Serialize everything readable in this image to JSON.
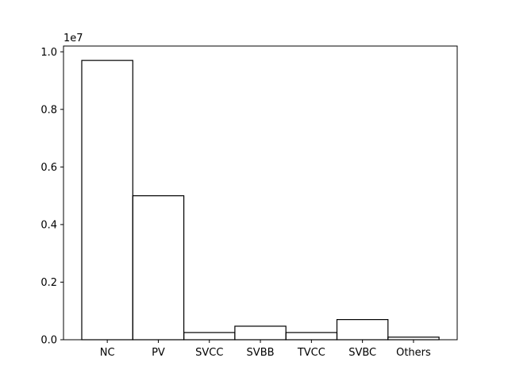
{
  "chart_data": {
    "type": "bar",
    "style": "step-outline",
    "categories": [
      "NC",
      "PV",
      "SVCC",
      "SVBB",
      "TVCC",
      "SVBC",
      "Others"
    ],
    "values": [
      9700000,
      5000000,
      250000,
      470000,
      250000,
      700000,
      90000
    ],
    "title": "",
    "xlabel": "",
    "ylabel": "",
    "ylim": [
      0,
      10200000
    ],
    "yticks": [
      0,
      2000000,
      4000000,
      6000000,
      8000000,
      10000000
    ],
    "ytick_labels": [
      "0.0",
      "0.2",
      "0.4",
      "0.6",
      "0.8",
      "1.0"
    ],
    "y_offset_label": "1e7",
    "grid": false,
    "legend": "none",
    "colors": {
      "stroke": "#000000",
      "background": "#ffffff",
      "fill": "none"
    }
  }
}
